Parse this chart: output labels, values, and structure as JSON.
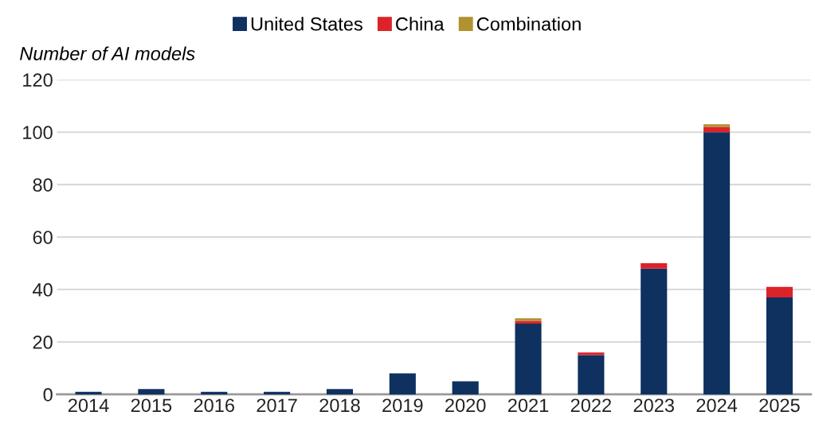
{
  "chart_data": {
    "type": "bar",
    "stacked": true,
    "ylabel": "Number of AI models",
    "categories": [
      "2014",
      "2015",
      "2016",
      "2017",
      "2018",
      "2019",
      "2020",
      "2021",
      "2022",
      "2023",
      "2024",
      "2025"
    ],
    "series": [
      {
        "name": "United States",
        "color": "#0e3160",
        "values": [
          1,
          2,
          1,
          1,
          2,
          8,
          5,
          27,
          15,
          48,
          100,
          37
        ]
      },
      {
        "name": "China",
        "color": "#dc2328",
        "values": [
          0,
          0,
          0,
          0,
          0,
          0,
          0,
          1,
          1,
          2,
          2,
          4
        ]
      },
      {
        "name": "Combination",
        "color": "#b0922f",
        "values": [
          0,
          0,
          0,
          0,
          0,
          0,
          0,
          1,
          0,
          0,
          1,
          0
        ]
      }
    ],
    "ylim": [
      0,
      120
    ],
    "yticks": [
      0,
      20,
      40,
      60,
      80,
      100,
      120
    ],
    "grid": "y",
    "legend": "top"
  }
}
